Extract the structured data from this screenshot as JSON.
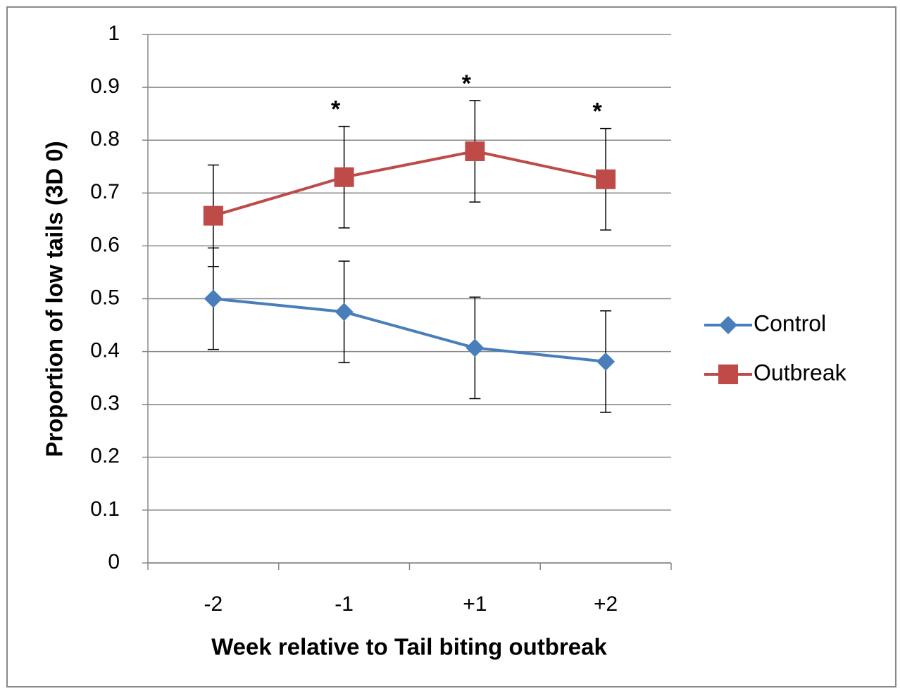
{
  "chart_data": {
    "type": "line",
    "x_label": "Week relative to Tail biting outbreak",
    "y_label": "Proportion of low tails (3D 0)",
    "categories": [
      "-2",
      "-1",
      "+1",
      "+2"
    ],
    "series": [
      {
        "name": "Control",
        "color": "#4a7ebb",
        "marker": "diamond",
        "values": [
          0.5,
          0.475,
          0.407,
          0.381
        ],
        "errors": [
          0.096,
          0.096,
          0.096,
          0.096
        ]
      },
      {
        "name": "Outbreak",
        "color": "#be4b48",
        "marker": "square",
        "values": [
          0.657,
          0.73,
          0.779,
          0.726
        ],
        "errors": [
          0.096,
          0.096,
          0.096,
          0.096
        ]
      }
    ],
    "annotations": [
      {
        "text": "*",
        "x": "-1"
      },
      {
        "text": "*",
        "x": "+1"
      },
      {
        "text": "*",
        "x": "+2"
      }
    ],
    "ylim": [
      0,
      1
    ],
    "yticks": [
      0,
      0.1,
      0.2,
      0.3,
      0.4,
      0.5,
      0.6,
      0.7,
      0.8,
      0.9,
      1
    ],
    "grid": true,
    "legend": "right"
  }
}
